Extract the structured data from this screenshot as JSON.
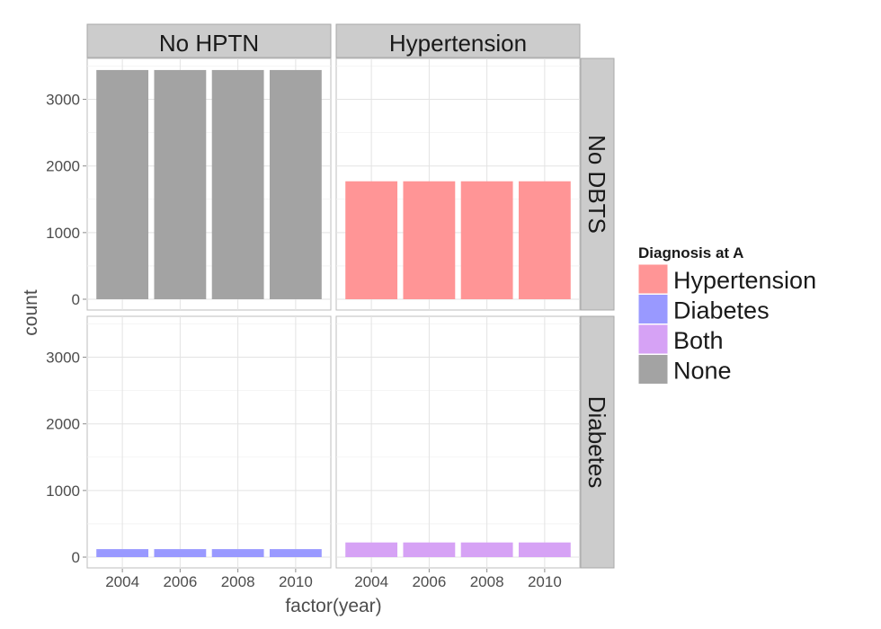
{
  "chart_data": {
    "type": "bar",
    "layout": "facet_grid",
    "xlabel": "factor(year)",
    "ylabel": "count",
    "categories": [
      "2004",
      "2006",
      "2008",
      "2010"
    ],
    "ylim": [
      0,
      3600
    ],
    "yticks": [
      0,
      1000,
      2000,
      3000
    ],
    "grid": true,
    "col_facets": [
      "No HPTN",
      "Hypertension"
    ],
    "row_facets": [
      "No DBTS",
      "Diabetes"
    ],
    "panels": [
      {
        "row": 0,
        "col": 0,
        "group": "None",
        "values": [
          3440,
          3440,
          3440,
          3440
        ]
      },
      {
        "row": 0,
        "col": 1,
        "group": "Hypertension",
        "values": [
          1770,
          1770,
          1770,
          1770
        ]
      },
      {
        "row": 1,
        "col": 0,
        "group": "Diabetes",
        "values": [
          120,
          120,
          120,
          120
        ]
      },
      {
        "row": 1,
        "col": 1,
        "group": "Both",
        "values": [
          220,
          220,
          220,
          220
        ]
      }
    ],
    "legend": {
      "title": "Diagnosis at A",
      "placement": "right",
      "entries": [
        {
          "label": "Hypertension",
          "color": "#ff9596"
        },
        {
          "label": "Diabetes",
          "color": "#9999ff"
        },
        {
          "label": "Both",
          "color": "#d6a2f5"
        },
        {
          "label": "None",
          "color": "#a3a3a3"
        }
      ]
    }
  }
}
